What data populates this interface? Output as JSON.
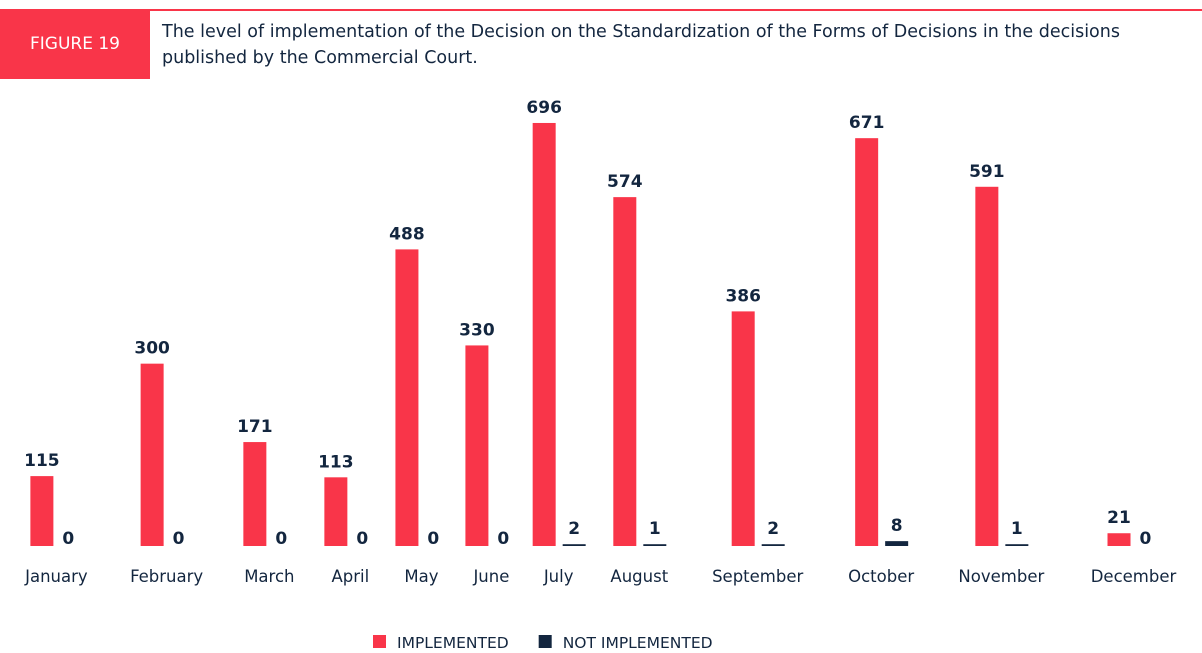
{
  "chart_data": {
    "type": "bar",
    "figure_label": "FIGURE 19",
    "title": "The level of implementation of the Decision on the Standardization of the Forms of Decisions in the decisions published by the Commercial Court.",
    "categories": [
      "January",
      "February",
      "March",
      "April",
      "May",
      "June",
      "July",
      "August",
      "September",
      "October",
      "November",
      "December"
    ],
    "series": [
      {
        "name": "IMPLEMENTED",
        "color": "#f93549",
        "values": [
          115,
          300,
          171,
          113,
          488,
          330,
          696,
          574,
          386,
          671,
          591,
          21
        ]
      },
      {
        "name": "NOT IMPLEMENTED",
        "color": "#13263f",
        "values": [
          0,
          0,
          0,
          0,
          0,
          0,
          2,
          1,
          2,
          8,
          1,
          0
        ]
      }
    ],
    "ylim": [
      0,
      700
    ]
  }
}
